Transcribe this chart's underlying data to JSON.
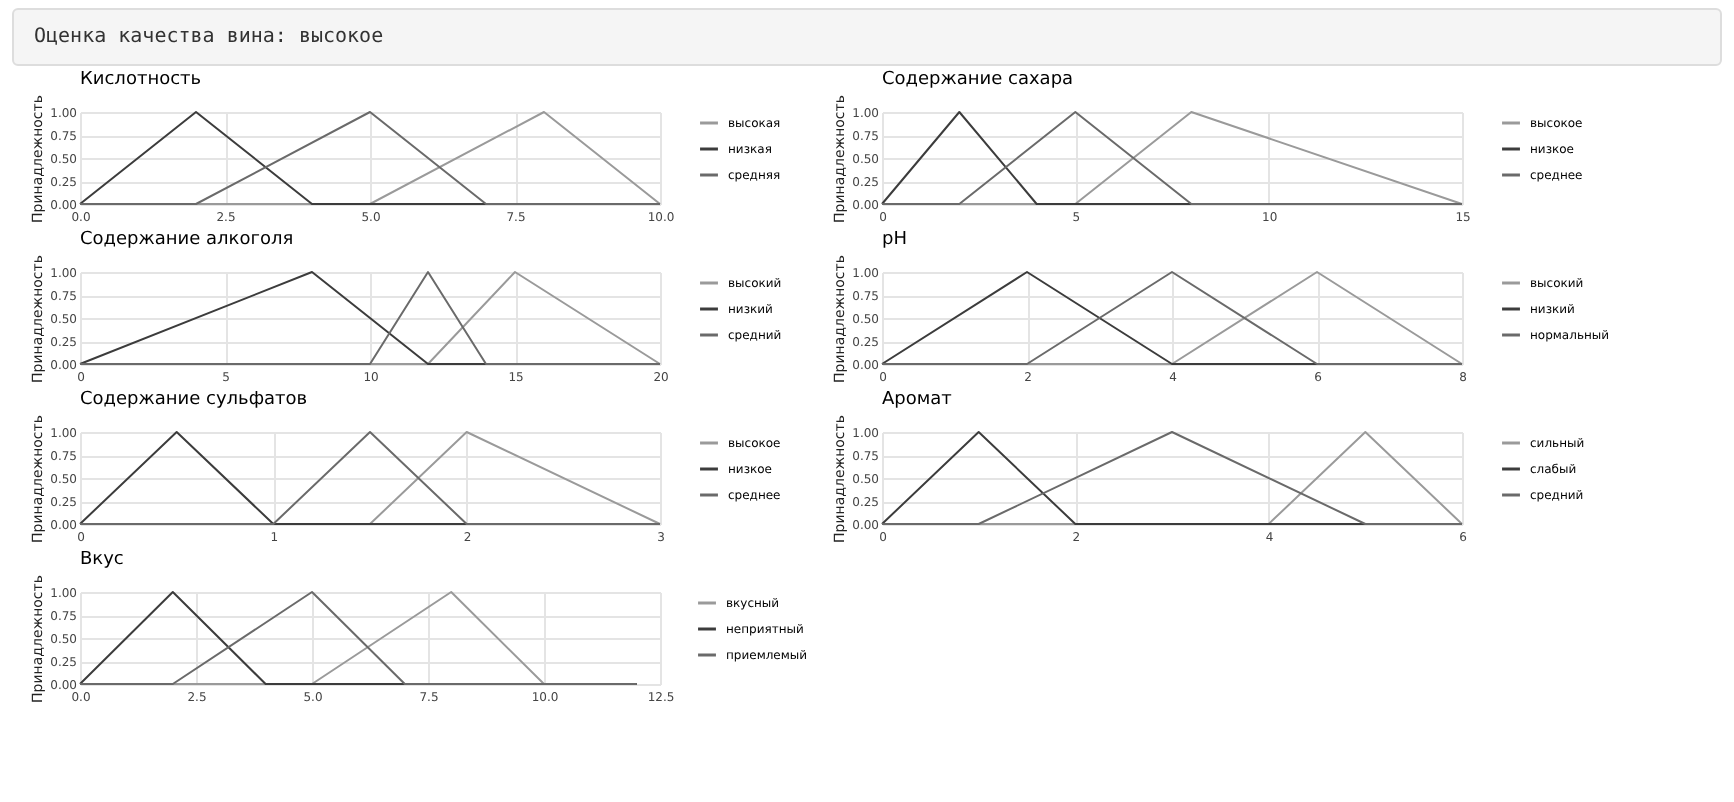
{
  "chart_data": [
    {
      "type": "line",
      "title": "Кислотность",
      "ylabel": "Принадлежность",
      "annotations": [
        "Оценка качества вина: высокое"
      ],
      "xlim": [
        0,
        10
      ],
      "xticks": [
        {
          "value": 0,
          "label": "0.0"
        },
        {
          "value": 2.5,
          "label": "2.5"
        },
        {
          "value": 5,
          "label": "5.0"
        },
        {
          "value": 7.5,
          "label": "7.5"
        },
        {
          "value": 10,
          "label": "10.0"
        }
      ],
      "ylim": [
        0,
        1
      ],
      "yticks": [
        {
          "value": 0,
          "label": "0.00"
        },
        {
          "value": 0.25,
          "label": "0.25"
        },
        {
          "value": 0.5,
          "label": "0.50"
        },
        {
          "value": 0.75,
          "label": "0.75"
        },
        {
          "value": 1,
          "label": "1.00"
        }
      ],
      "grid": true,
      "legend": "right",
      "series": [
        {
          "name": "высокая",
          "color": "#9a9a9a",
          "x": [
            0,
            5,
            8,
            10
          ],
          "values": [
            0,
            0,
            1,
            0
          ]
        },
        {
          "name": "низкая",
          "color": "#3c3c3c",
          "x": [
            0,
            2,
            4,
            10
          ],
          "values": [
            0,
            1,
            0,
            0
          ]
        },
        {
          "name": "средняя",
          "color": "#6a6a6a",
          "x": [
            0,
            2,
            5,
            7,
            10
          ],
          "values": [
            0,
            0,
            1,
            0,
            0
          ]
        }
      ]
    },
    {
      "type": "line",
      "title": "Содержание сахара",
      "ylabel": "Принадлежность",
      "xlim": [
        0,
        15
      ],
      "xticks": [
        0,
        5,
        10,
        15
      ],
      "ylim": [
        0,
        1
      ],
      "yticks": [
        {
          "value": 0,
          "label": "0.00"
        },
        {
          "value": 0.25,
          "label": "0.25"
        },
        {
          "value": 0.5,
          "label": "0.50"
        },
        {
          "value": 0.75,
          "label": "0.75"
        },
        {
          "value": 1,
          "label": "1.00"
        }
      ],
      "grid": true,
      "legend": "right",
      "series": [
        {
          "name": "высокое",
          "color": "#9a9a9a",
          "x": [
            0,
            5,
            8,
            15
          ],
          "values": [
            0,
            0,
            1,
            0
          ]
        },
        {
          "name": "низкое",
          "color": "#3c3c3c",
          "x": [
            0,
            2,
            4,
            15
          ],
          "values": [
            0,
            1,
            0,
            0
          ]
        },
        {
          "name": "среднее",
          "color": "#6a6a6a",
          "x": [
            0,
            2,
            5,
            8,
            15
          ],
          "values": [
            0,
            0,
            1,
            0,
            0
          ]
        }
      ]
    },
    {
      "type": "line",
      "title": "Содержание алкоголя",
      "ylabel": "Принадлежность",
      "xlim": [
        0,
        20
      ],
      "xticks": [
        0,
        5,
        10,
        15,
        20
      ],
      "ylim": [
        0,
        1
      ],
      "yticks": [
        {
          "value": 0,
          "label": "0.00"
        },
        {
          "value": 0.25,
          "label": "0.25"
        },
        {
          "value": 0.5,
          "label": "0.50"
        },
        {
          "value": 0.75,
          "label": "0.75"
        },
        {
          "value": 1,
          "label": "1.00"
        }
      ],
      "grid": true,
      "legend": "right",
      "series": [
        {
          "name": "высокий",
          "color": "#9a9a9a",
          "x": [
            0,
            12,
            15,
            20
          ],
          "values": [
            0,
            0,
            1,
            0
          ]
        },
        {
          "name": "низкий",
          "color": "#3c3c3c",
          "x": [
            0,
            8,
            12,
            20
          ],
          "values": [
            0,
            1,
            0,
            0
          ]
        },
        {
          "name": "средний",
          "color": "#6a6a6a",
          "x": [
            0,
            10,
            12,
            14,
            20
          ],
          "values": [
            0,
            0,
            1,
            0,
            0
          ]
        }
      ]
    },
    {
      "type": "line",
      "title": "pH",
      "ylabel": "Принадлежность",
      "xlim": [
        0,
        8
      ],
      "xticks": [
        0,
        2,
        4,
        6,
        8
      ],
      "ylim": [
        0,
        1
      ],
      "yticks": [
        {
          "value": 0,
          "label": "0.00"
        },
        {
          "value": 0.25,
          "label": "0.25"
        },
        {
          "value": 0.5,
          "label": "0.50"
        },
        {
          "value": 0.75,
          "label": "0.75"
        },
        {
          "value": 1,
          "label": "1.00"
        }
      ],
      "grid": true,
      "legend": "right",
      "series": [
        {
          "name": "высокий",
          "color": "#9a9a9a",
          "x": [
            0,
            4,
            6,
            8
          ],
          "values": [
            0,
            0,
            1,
            0
          ]
        },
        {
          "name": "низкий",
          "color": "#3c3c3c",
          "x": [
            0,
            2,
            4,
            8
          ],
          "values": [
            0,
            1,
            0,
            0
          ]
        },
        {
          "name": "нормальный",
          "color": "#6a6a6a",
          "x": [
            0,
            2,
            4,
            6,
            8
          ],
          "values": [
            0,
            0,
            1,
            0,
            0
          ]
        }
      ]
    },
    {
      "type": "line",
      "title": "Содержание сульфатов",
      "ylabel": "Принадлежность",
      "xlim": [
        0,
        3
      ],
      "xticks": [
        0,
        1,
        2,
        3
      ],
      "ylim": [
        0,
        1
      ],
      "yticks": [
        {
          "value": 0,
          "label": "0.00"
        },
        {
          "value": 0.25,
          "label": "0.25"
        },
        {
          "value": 0.5,
          "label": "0.50"
        },
        {
          "value": 0.75,
          "label": "0.75"
        },
        {
          "value": 1,
          "label": "1.00"
        }
      ],
      "grid": true,
      "legend": "right",
      "series": [
        {
          "name": "высокое",
          "color": "#9a9a9a",
          "x": [
            0,
            1.5,
            2,
            3
          ],
          "values": [
            0,
            0,
            1,
            0
          ]
        },
        {
          "name": "низкое",
          "color": "#3c3c3c",
          "x": [
            0,
            0.5,
            1,
            3
          ],
          "values": [
            0,
            1,
            0,
            0
          ]
        },
        {
          "name": "среднее",
          "color": "#6a6a6a",
          "x": [
            0,
            1,
            1.5,
            2,
            3
          ],
          "values": [
            0,
            0,
            1,
            0,
            0
          ]
        }
      ]
    },
    {
      "type": "line",
      "title": "Аромат",
      "ylabel": "Принадлежность",
      "xlim": [
        0,
        6
      ],
      "xticks": [
        0,
        2,
        4,
        6
      ],
      "ylim": [
        0,
        1
      ],
      "yticks": [
        {
          "value": 0,
          "label": "0.00"
        },
        {
          "value": 0.25,
          "label": "0.25"
        },
        {
          "value": 0.5,
          "label": "0.50"
        },
        {
          "value": 0.75,
          "label": "0.75"
        },
        {
          "value": 1,
          "label": "1.00"
        }
      ],
      "grid": true,
      "legend": "right",
      "series": [
        {
          "name": "сильный",
          "color": "#9a9a9a",
          "x": [
            0,
            4,
            5,
            6
          ],
          "values": [
            0,
            0,
            1,
            0
          ]
        },
        {
          "name": "слабый",
          "color": "#3c3c3c",
          "x": [
            0,
            1,
            2,
            6
          ],
          "values": [
            0,
            1,
            0,
            0
          ]
        },
        {
          "name": "средний",
          "color": "#6a6a6a",
          "x": [
            0,
            1,
            3,
            5,
            6
          ],
          "values": [
            0,
            0,
            1,
            0,
            0
          ]
        }
      ]
    },
    {
      "type": "line",
      "title": "Вкус",
      "ylabel": "Принадлежность",
      "xlim": [
        0,
        12.5
      ],
      "xticks": [
        {
          "value": 0,
          "label": "0.0"
        },
        {
          "value": 2.5,
          "label": "2.5"
        },
        {
          "value": 5,
          "label": "5.0"
        },
        {
          "value": 7.5,
          "label": "7.5"
        },
        {
          "value": 10,
          "label": "10.0"
        },
        {
          "value": 12.5,
          "label": "12.5"
        }
      ],
      "ylim": [
        0,
        1
      ],
      "yticks": [
        {
          "value": 0,
          "label": "0.00"
        },
        {
          "value": 0.25,
          "label": "0.25"
        },
        {
          "value": 0.5,
          "label": "0.50"
        },
        {
          "value": 0.75,
          "label": "0.75"
        },
        {
          "value": 1,
          "label": "1.00"
        }
      ],
      "grid": true,
      "legend": "right",
      "series": [
        {
          "name": "вкусный",
          "color": "#9a9a9a",
          "x": [
            0,
            5,
            8,
            10,
            12
          ],
          "values": [
            0,
            0,
            1,
            0,
            0
          ]
        },
        {
          "name": "неприятный",
          "color": "#3c3c3c",
          "x": [
            0,
            2,
            4,
            12
          ],
          "values": [
            0,
            1,
            0,
            0
          ]
        },
        {
          "name": "приемлемый",
          "color": "#6a6a6a",
          "x": [
            0,
            2,
            5,
            7,
            12
          ],
          "values": [
            0,
            0,
            1,
            0,
            0
          ]
        }
      ]
    }
  ]
}
